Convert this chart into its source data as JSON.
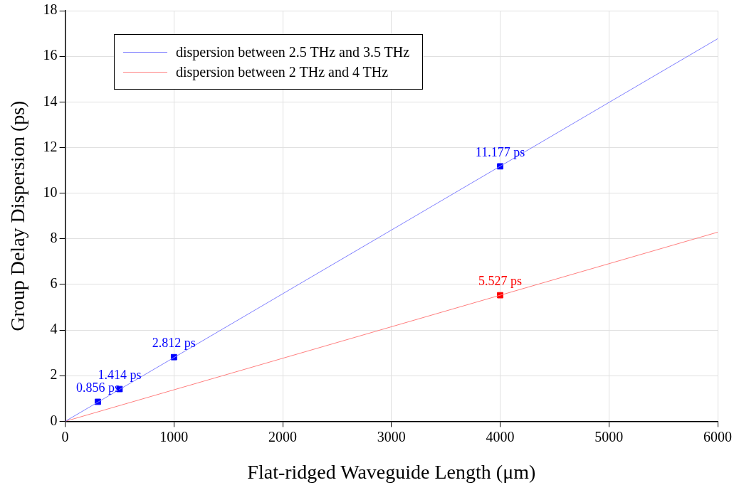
{
  "chart_data": {
    "type": "line",
    "xlabel": "Flat-ridged Waveguide Length (μm)",
    "ylabel": "Group Delay Dispersion (ps)",
    "xlim": [
      0,
      6000
    ],
    "ylim": [
      0,
      18
    ],
    "xticks": [
      0,
      1000,
      2000,
      3000,
      4000,
      5000,
      6000
    ],
    "yticks": [
      0,
      2,
      4,
      6,
      8,
      10,
      12,
      14,
      16,
      18
    ],
    "grid": true,
    "legend": "top left",
    "series": [
      {
        "name": "dispersion between 2.5 THz and 3.5 THz",
        "color": "#8080ff",
        "x": [
          0,
          6000
        ],
        "values": [
          0,
          16.77
        ],
        "marker": "none"
      },
      {
        "name": "dispersion between 2 THz and 4 THz",
        "color": "#ff8080",
        "x": [
          0,
          6000
        ],
        "values": [
          0,
          8.29
        ],
        "marker": "none"
      },
      {
        "type": "scatter",
        "color": "#0000ff",
        "x": [
          300,
          500,
          1000,
          4000
        ],
        "values": [
          0.856,
          1.414,
          2.812,
          11.177
        ],
        "marker": "square",
        "value_labels": [
          "0.856 ps",
          "1.414 ps",
          "2.812 ps",
          "11.177 ps"
        ]
      },
      {
        "type": "scatter",
        "color": "#ff0000",
        "x": [
          4000
        ],
        "values": [
          5.527
        ],
        "marker": "square",
        "value_labels": [
          "5.527 ps"
        ]
      }
    ]
  }
}
